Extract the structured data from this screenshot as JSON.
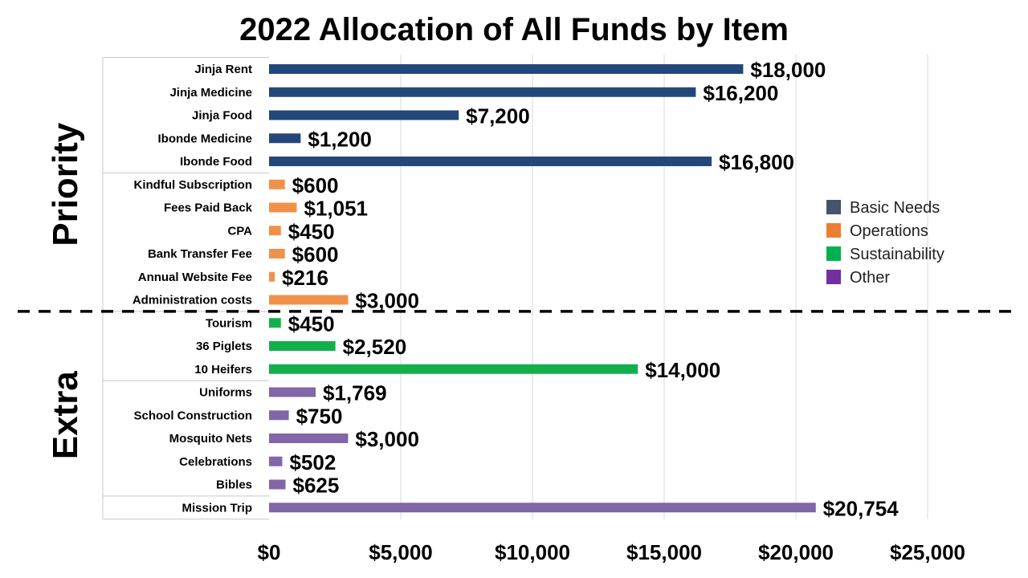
{
  "chart_data": {
    "type": "bar",
    "orientation": "horizontal",
    "title": "2022 Allocation of All Funds by Item",
    "xlabel": "",
    "ylabel": "",
    "xlim": [
      0,
      25000
    ],
    "x_ticks": [
      0,
      5000,
      10000,
      15000,
      20000,
      25000
    ],
    "x_tick_labels": [
      "$0",
      "$5,000",
      "$10,000",
      "$15,000",
      "$20,000",
      "$25,000"
    ],
    "grid": true,
    "legend_position": "right",
    "groups": [
      {
        "label": "Priority",
        "categories": [
          "Jinja Rent",
          "Jinja Medicine",
          "Jinja Food",
          "Ibonde Medicine",
          "Ibonde Food",
          "Kindful Subscription",
          "Fees Paid Back",
          "CPA",
          "Bank Transfer Fee",
          "Annual Website Fee",
          "Administration costs"
        ]
      },
      {
        "label": "Extra",
        "categories": [
          "Tourism",
          "36 Piglets",
          "10 Heifers",
          "Uniforms",
          "School Construction",
          "Mosquito Nets",
          "Celebrations",
          "Bibles",
          "Mission Trip"
        ]
      }
    ],
    "items": [
      {
        "category": "Jinja Rent",
        "value": 18000,
        "label": "$18,000",
        "series": "Basic Needs"
      },
      {
        "category": "Jinja Medicine",
        "value": 16200,
        "label": "$16,200",
        "series": "Basic Needs"
      },
      {
        "category": "Jinja Food",
        "value": 7200,
        "label": "$7,200",
        "series": "Basic Needs"
      },
      {
        "category": "Ibonde Medicine",
        "value": 1200,
        "label": "$1,200",
        "series": "Basic Needs"
      },
      {
        "category": "Ibonde Food",
        "value": 16800,
        "label": "$16,800",
        "series": "Basic Needs"
      },
      {
        "category": "Kindful Subscription",
        "value": 600,
        "label": "$600",
        "series": "Operations"
      },
      {
        "category": "Fees Paid Back",
        "value": 1051,
        "label": "$1,051",
        "series": "Operations"
      },
      {
        "category": "CPA",
        "value": 450,
        "label": "$450",
        "series": "Operations"
      },
      {
        "category": "Bank Transfer Fee",
        "value": 600,
        "label": "$600",
        "series": "Operations"
      },
      {
        "category": "Annual Website Fee",
        "value": 216,
        "label": "$216",
        "series": "Operations"
      },
      {
        "category": "Administration costs",
        "value": 3000,
        "label": "$3,000",
        "series": "Operations"
      },
      {
        "category": "Tourism",
        "value": 450,
        "label": "$450",
        "series": "Sustainability"
      },
      {
        "category": "36 Piglets",
        "value": 2520,
        "label": "$2,520",
        "series": "Sustainability"
      },
      {
        "category": "10 Heifers",
        "value": 14000,
        "label": "$14,000",
        "series": "Sustainability"
      },
      {
        "category": "Uniforms",
        "value": 1769,
        "label": "$1,769",
        "series": "Other"
      },
      {
        "category": "School Construction",
        "value": 750,
        "label": "$750",
        "series": "Other"
      },
      {
        "category": "Mosquito Nets",
        "value": 3000,
        "label": "$3,000",
        "series": "Other"
      },
      {
        "category": "Celebrations",
        "value": 502,
        "label": "$502",
        "series": "Other"
      },
      {
        "category": "Bibles",
        "value": 625,
        "label": "$625",
        "series": "Other"
      },
      {
        "category": "Mission Trip",
        "value": 20754,
        "label": "$20,754",
        "series": "Other"
      }
    ],
    "series": [
      {
        "name": "Basic Needs",
        "color": "#24477a",
        "legend_color": "#44546a"
      },
      {
        "name": "Operations",
        "color": "#f0914a",
        "legend_color": "#ed7d31"
      },
      {
        "name": "Sustainability",
        "color": "#12b04c",
        "legend_color": "#00b050"
      },
      {
        "name": "Other",
        "color": "#8166a8",
        "legend_color": "#7030a0"
      }
    ]
  }
}
